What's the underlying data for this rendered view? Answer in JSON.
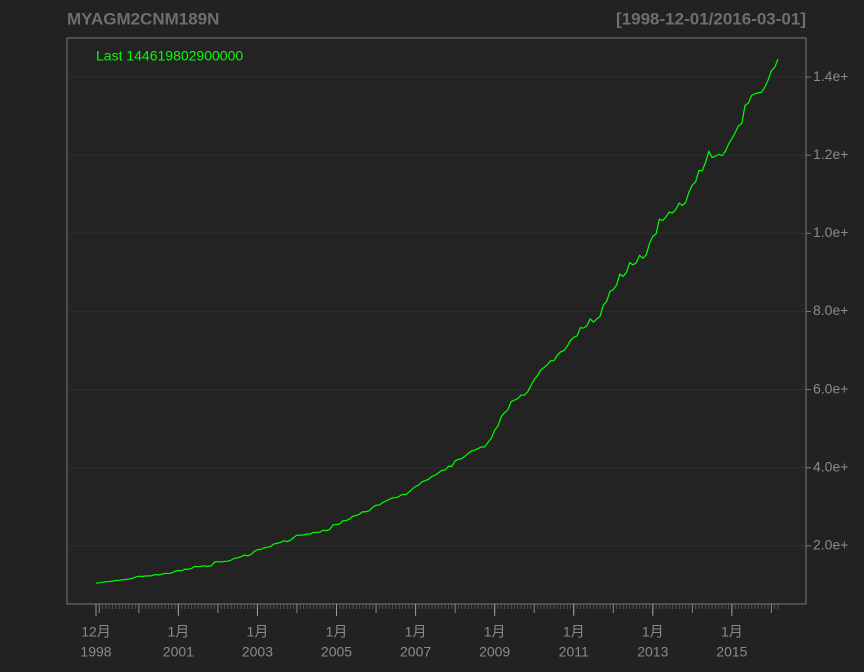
{
  "chart_data": {
    "type": "line",
    "title": "MYAGM2CNM189N",
    "subtitle": "[1998-12-01/2016-03-01]",
    "annotation": "Last 144619802900000",
    "color": "#00ff00",
    "grid": true,
    "ylim": [
      5100000000000.0,
      150000000000000.0
    ],
    "yticks": [
      {
        "value": 20000000000000.0,
        "label": "2.0e+"
      },
      {
        "value": 40000000000000.0,
        "label": "4.0e+"
      },
      {
        "value": 60000000000000.0,
        "label": "6.0e+"
      },
      {
        "value": 80000000000000.0,
        "label": "8.0e+"
      },
      {
        "value": 100000000000000.0,
        "label": "1.0e+"
      },
      {
        "value": 120000000000000.0,
        "label": "1.2e+"
      },
      {
        "value": 140000000000000.0,
        "label": "1.4e+"
      }
    ],
    "xticks": [
      {
        "value": "1998-12",
        "label": "12月",
        "year": "1998"
      },
      {
        "value": "2001-01",
        "label": "1月",
        "year": "2001"
      },
      {
        "value": "2003-01",
        "label": "1月",
        "year": "2003"
      },
      {
        "value": "2005-01",
        "label": "1月",
        "year": "2005"
      },
      {
        "value": "2007-01",
        "label": "1月",
        "year": "2007"
      },
      {
        "value": "2009-01",
        "label": "1月",
        "year": "2009"
      },
      {
        "value": "2011-01",
        "label": "1月",
        "year": "2011"
      },
      {
        "value": "2013-01",
        "label": "1月",
        "year": "2013"
      },
      {
        "value": "2015-01",
        "label": "1月",
        "year": "2015"
      }
    ],
    "x": [
      "1998-12",
      "1999-01",
      "1999-02",
      "1999-03",
      "1999-04",
      "1999-05",
      "1999-06",
      "1999-07",
      "1999-08",
      "1999-09",
      "1999-10",
      "1999-11",
      "1999-12",
      "2000-01",
      "2000-02",
      "2000-03",
      "2000-04",
      "2000-05",
      "2000-06",
      "2000-07",
      "2000-08",
      "2000-09",
      "2000-10",
      "2000-11",
      "2000-12",
      "2001-01",
      "2001-02",
      "2001-03",
      "2001-04",
      "2001-05",
      "2001-06",
      "2001-07",
      "2001-08",
      "2001-09",
      "2001-10",
      "2001-11",
      "2001-12",
      "2002-01",
      "2002-02",
      "2002-03",
      "2002-04",
      "2002-05",
      "2002-06",
      "2002-07",
      "2002-08",
      "2002-09",
      "2002-10",
      "2002-11",
      "2002-12",
      "2003-01",
      "2003-02",
      "2003-03",
      "2003-04",
      "2003-05",
      "2003-06",
      "2003-07",
      "2003-08",
      "2003-09",
      "2003-10",
      "2003-11",
      "2003-12",
      "2004-01",
      "2004-02",
      "2004-03",
      "2004-04",
      "2004-05",
      "2004-06",
      "2004-07",
      "2004-08",
      "2004-09",
      "2004-10",
      "2004-11",
      "2004-12",
      "2005-01",
      "2005-02",
      "2005-03",
      "2005-04",
      "2005-05",
      "2005-06",
      "2005-07",
      "2005-08",
      "2005-09",
      "2005-10",
      "2005-11",
      "2005-12",
      "2006-01",
      "2006-02",
      "2006-03",
      "2006-04",
      "2006-05",
      "2006-06",
      "2006-07",
      "2006-08",
      "2006-09",
      "2006-10",
      "2006-11",
      "2006-12",
      "2007-01",
      "2007-02",
      "2007-03",
      "2007-04",
      "2007-05",
      "2007-06",
      "2007-07",
      "2007-08",
      "2007-09",
      "2007-10",
      "2007-11",
      "2007-12",
      "2008-01",
      "2008-02",
      "2008-03",
      "2008-04",
      "2008-05",
      "2008-06",
      "2008-07",
      "2008-08",
      "2008-09",
      "2008-10",
      "2008-11",
      "2008-12",
      "2009-01",
      "2009-02",
      "2009-03",
      "2009-04",
      "2009-05",
      "2009-06",
      "2009-07",
      "2009-08",
      "2009-09",
      "2009-10",
      "2009-11",
      "2009-12",
      "2010-01",
      "2010-02",
      "2010-03",
      "2010-04",
      "2010-05",
      "2010-06",
      "2010-07",
      "2010-08",
      "2010-09",
      "2010-10",
      "2010-11",
      "2010-12",
      "2011-01",
      "2011-02",
      "2011-03",
      "2011-04",
      "2011-05",
      "2011-06",
      "2011-07",
      "2011-08",
      "2011-09",
      "2011-10",
      "2011-11",
      "2011-12",
      "2012-01",
      "2012-02",
      "2012-03",
      "2012-04",
      "2012-05",
      "2012-06",
      "2012-07",
      "2012-08",
      "2012-09",
      "2012-10",
      "2012-11",
      "2012-12",
      "2013-01",
      "2013-02",
      "2013-03",
      "2013-04",
      "2013-05",
      "2013-06",
      "2013-07",
      "2013-08",
      "2013-09",
      "2013-10",
      "2013-11",
      "2013-12",
      "2014-01",
      "2014-02",
      "2014-03",
      "2014-04",
      "2014-05",
      "2014-06",
      "2014-07",
      "2014-08",
      "2014-09",
      "2014-10",
      "2014-11",
      "2014-12",
      "2015-01",
      "2015-02",
      "2015-03",
      "2015-04",
      "2015-05",
      "2015-06",
      "2015-07",
      "2015-08",
      "2015-09",
      "2015-10",
      "2015-11",
      "2015-12",
      "2016-01",
      "2016-02",
      "2016-03"
    ],
    "values": [
      10450000000000.0,
      10530000000000.0,
      10650000000000.0,
      10800000000000.0,
      10840000000000.0,
      10950000000000.0,
      11120000000000.0,
      11170000000000.0,
      11270000000000.0,
      11390000000000.0,
      11480000000000.0,
      11670000000000.0,
      11990000000000.0,
      12220000000000.0,
      12140000000000.0,
      12260000000000.0,
      12310000000000.0,
      12340000000000.0,
      12660000000000.0,
      12530000000000.0,
      12730000000000.0,
      12960000000000.0,
      12890000000000.0,
      13050000000000.0,
      13460000000000.0,
      13680000000000.0,
      13600000000000.0,
      14020000000000.0,
      14000000000000.0,
      14210000000000.0,
      14720000000000.0,
      14650000000000.0,
      14790000000000.0,
      14870000000000.0,
      14710000000000.0,
      14920000000000.0,
      15830000000000.0,
      15940000000000.0,
      15840000000000.0,
      16030000000000.0,
      16030000000000.0,
      16330000000000.0,
      16780000000000.0,
      16930000000000.0,
      17170000000000.0,
      17600000000000.0,
      17440000000000.0,
      17760000000000.0,
      18500000000000.0,
      19040000000000.0,
      19050000000000.0,
      19440000000000.0,
      19610000000000.0,
      19830000000000.0,
      20480000000000.0,
      20650000000000.0,
      20870000000000.0,
      21300000000000.0,
      21080000000000.0,
      21400000000000.0,
      22120000000000.0,
      22750000000000.0,
      22680000000000.0,
      22800000000000.0,
      22990000000000.0,
      23020000000000.0,
      23400000000000.0,
      23440000000000.0,
      23520000000000.0,
      24010000000000.0,
      23860000000000.0,
      24230000000000.0,
      25410000000000.0,
      25420000000000.0,
      25600000000000.0,
      26430000000000.0,
      26490000000000.0,
      26870000000000.0,
      27580000000000.0,
      27730000000000.0,
      28140000000000.0,
      28730000000000.0,
      28720000000000.0,
      29020000000000.0,
      29880000000000.0,
      30380000000000.0,
      30460000000000.0,
      31050000000000.0,
      31500000000000.0,
      31880000000000.0,
      32270000000000.0,
      32310000000000.0,
      32650000000000.0,
      33170000000000.0,
      33110000000000.0,
      33760000000000.0,
      34560000000000.0,
      35170000000000.0,
      35580000000000.0,
      36410000000000.0,
      36660000000000.0,
      37080000000000.0,
      37780000000000.0,
      38100000000000.0,
      38700000000000.0,
      39310000000000.0,
      39410000000000.0,
      40360000000000.0,
      40340000000000.0,
      41740000000000.0,
      42130000000000.0,
      42310000000000.0,
      42940000000000.0,
      43690000000000.0,
      44310000000000.0,
      44510000000000.0,
      44920000000000.0,
      45290000000000.0,
      45310000000000.0,
      46500000000000.0,
      47520000000000.0,
      49610000000000.0,
      50680000000000.0,
      53060000000000.0,
      54050000000000.0,
      54790000000000.0,
      56890000000000.0,
      57300000000000.0,
      57670000000000.0,
      58570000000000.0,
      58600000000000.0,
      59400000000000.0,
      61020000000000.0,
      62560000000000.0,
      63600000000000.0,
      64990000000000.0,
      65640000000000.0,
      66380000000000.0,
      67390000000000.0,
      67400000000000.0,
      68750000000000.0,
      69640000000000.0,
      69980000000000.0,
      71030000000000.0,
      72580000000000.0,
      73360000000000.0,
      73730000000000.0,
      75810000000000.0,
      75740000000000.0,
      76340000000000.0,
      78080000000000.0,
      77290000000000.0,
      78080000000000.0,
      78740000000000.0,
      81680000000000.0,
      82570000000000.0,
      85160000000000.0,
      85560000000000.0,
      86770000000000.0,
      89560000000000.0,
      88960000000000.0,
      90010000000000.0,
      92500000000000.0,
      91920000000000.0,
      92490000000000.0,
      94370000000000.0,
      93640000000000.0,
      94460000000000.0,
      97410000000000.0,
      99210000000000.0,
      99860000000000.0,
      103610000000000.0,
      103260000000000.0,
      104210000000000.0,
      105450000000000.0,
      105220000000000.0,
      106130000000000.0,
      107740000000000.0,
      107100000000000.0,
      107930000000000.0,
      110650000000000.0,
      112350000000000.0,
      113180000000000.0,
      116070000000000.0,
      116000000000000.0,
      118120000000000.0,
      120960000000000.0,
      119420000000000.0,
      119760000000000.0,
      120210000000000.0,
      119870000000000.0,
      120960000000000.0,
      122840000000000.0,
      124270000000000.0,
      125740000000000.0,
      127530000000000.0,
      128080000000000.0,
      132760000000000.0,
      133340000000000.0,
      135320000000000.0,
      135680000000000.0,
      135980000000000.0,
      136100000000000.0,
      137400000000000.0,
      139230000000000.0,
      141630000000000.0,
      142460000000000.0,
      144619802900000.0
    ]
  }
}
